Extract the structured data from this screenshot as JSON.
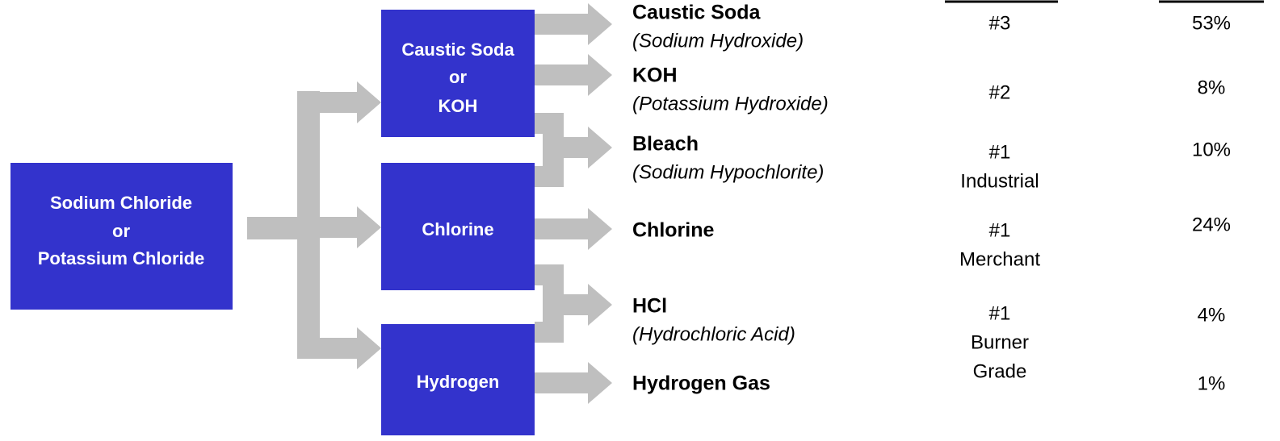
{
  "source": {
    "lines": [
      "Sodium Chloride",
      "or",
      "Potassium Chloride"
    ]
  },
  "intermediates": [
    {
      "lines": [
        "Caustic Soda",
        "or",
        "KOH"
      ]
    },
    {
      "lines": [
        "Chlorine"
      ]
    },
    {
      "lines": [
        "Hydrogen"
      ]
    }
  ],
  "products": [
    {
      "name": "Caustic Soda",
      "detail": "(Sodium Hydroxide)"
    },
    {
      "name": "KOH",
      "detail": "(Potassium Hydroxide)"
    },
    {
      "name": "Bleach",
      "detail": "(Sodium Hypochlorite)"
    },
    {
      "name": "Chlorine"
    },
    {
      "name": "HCl",
      "detail": "(Hydrochloric Acid)"
    },
    {
      "name": "Hydrogen Gas"
    }
  ],
  "ranks": [
    {
      "lines": [
        "#3"
      ]
    },
    {
      "lines": [
        "#2"
      ]
    },
    {
      "lines": [
        "#1",
        "Industrial"
      ]
    },
    {
      "lines": [
        "#1",
        "Merchant"
      ]
    },
    {
      "lines": [
        "#1",
        "Burner",
        "Grade"
      ]
    }
  ],
  "shares": [
    "53%",
    "8%",
    "10%",
    "24%",
    "4%",
    "1%"
  ]
}
